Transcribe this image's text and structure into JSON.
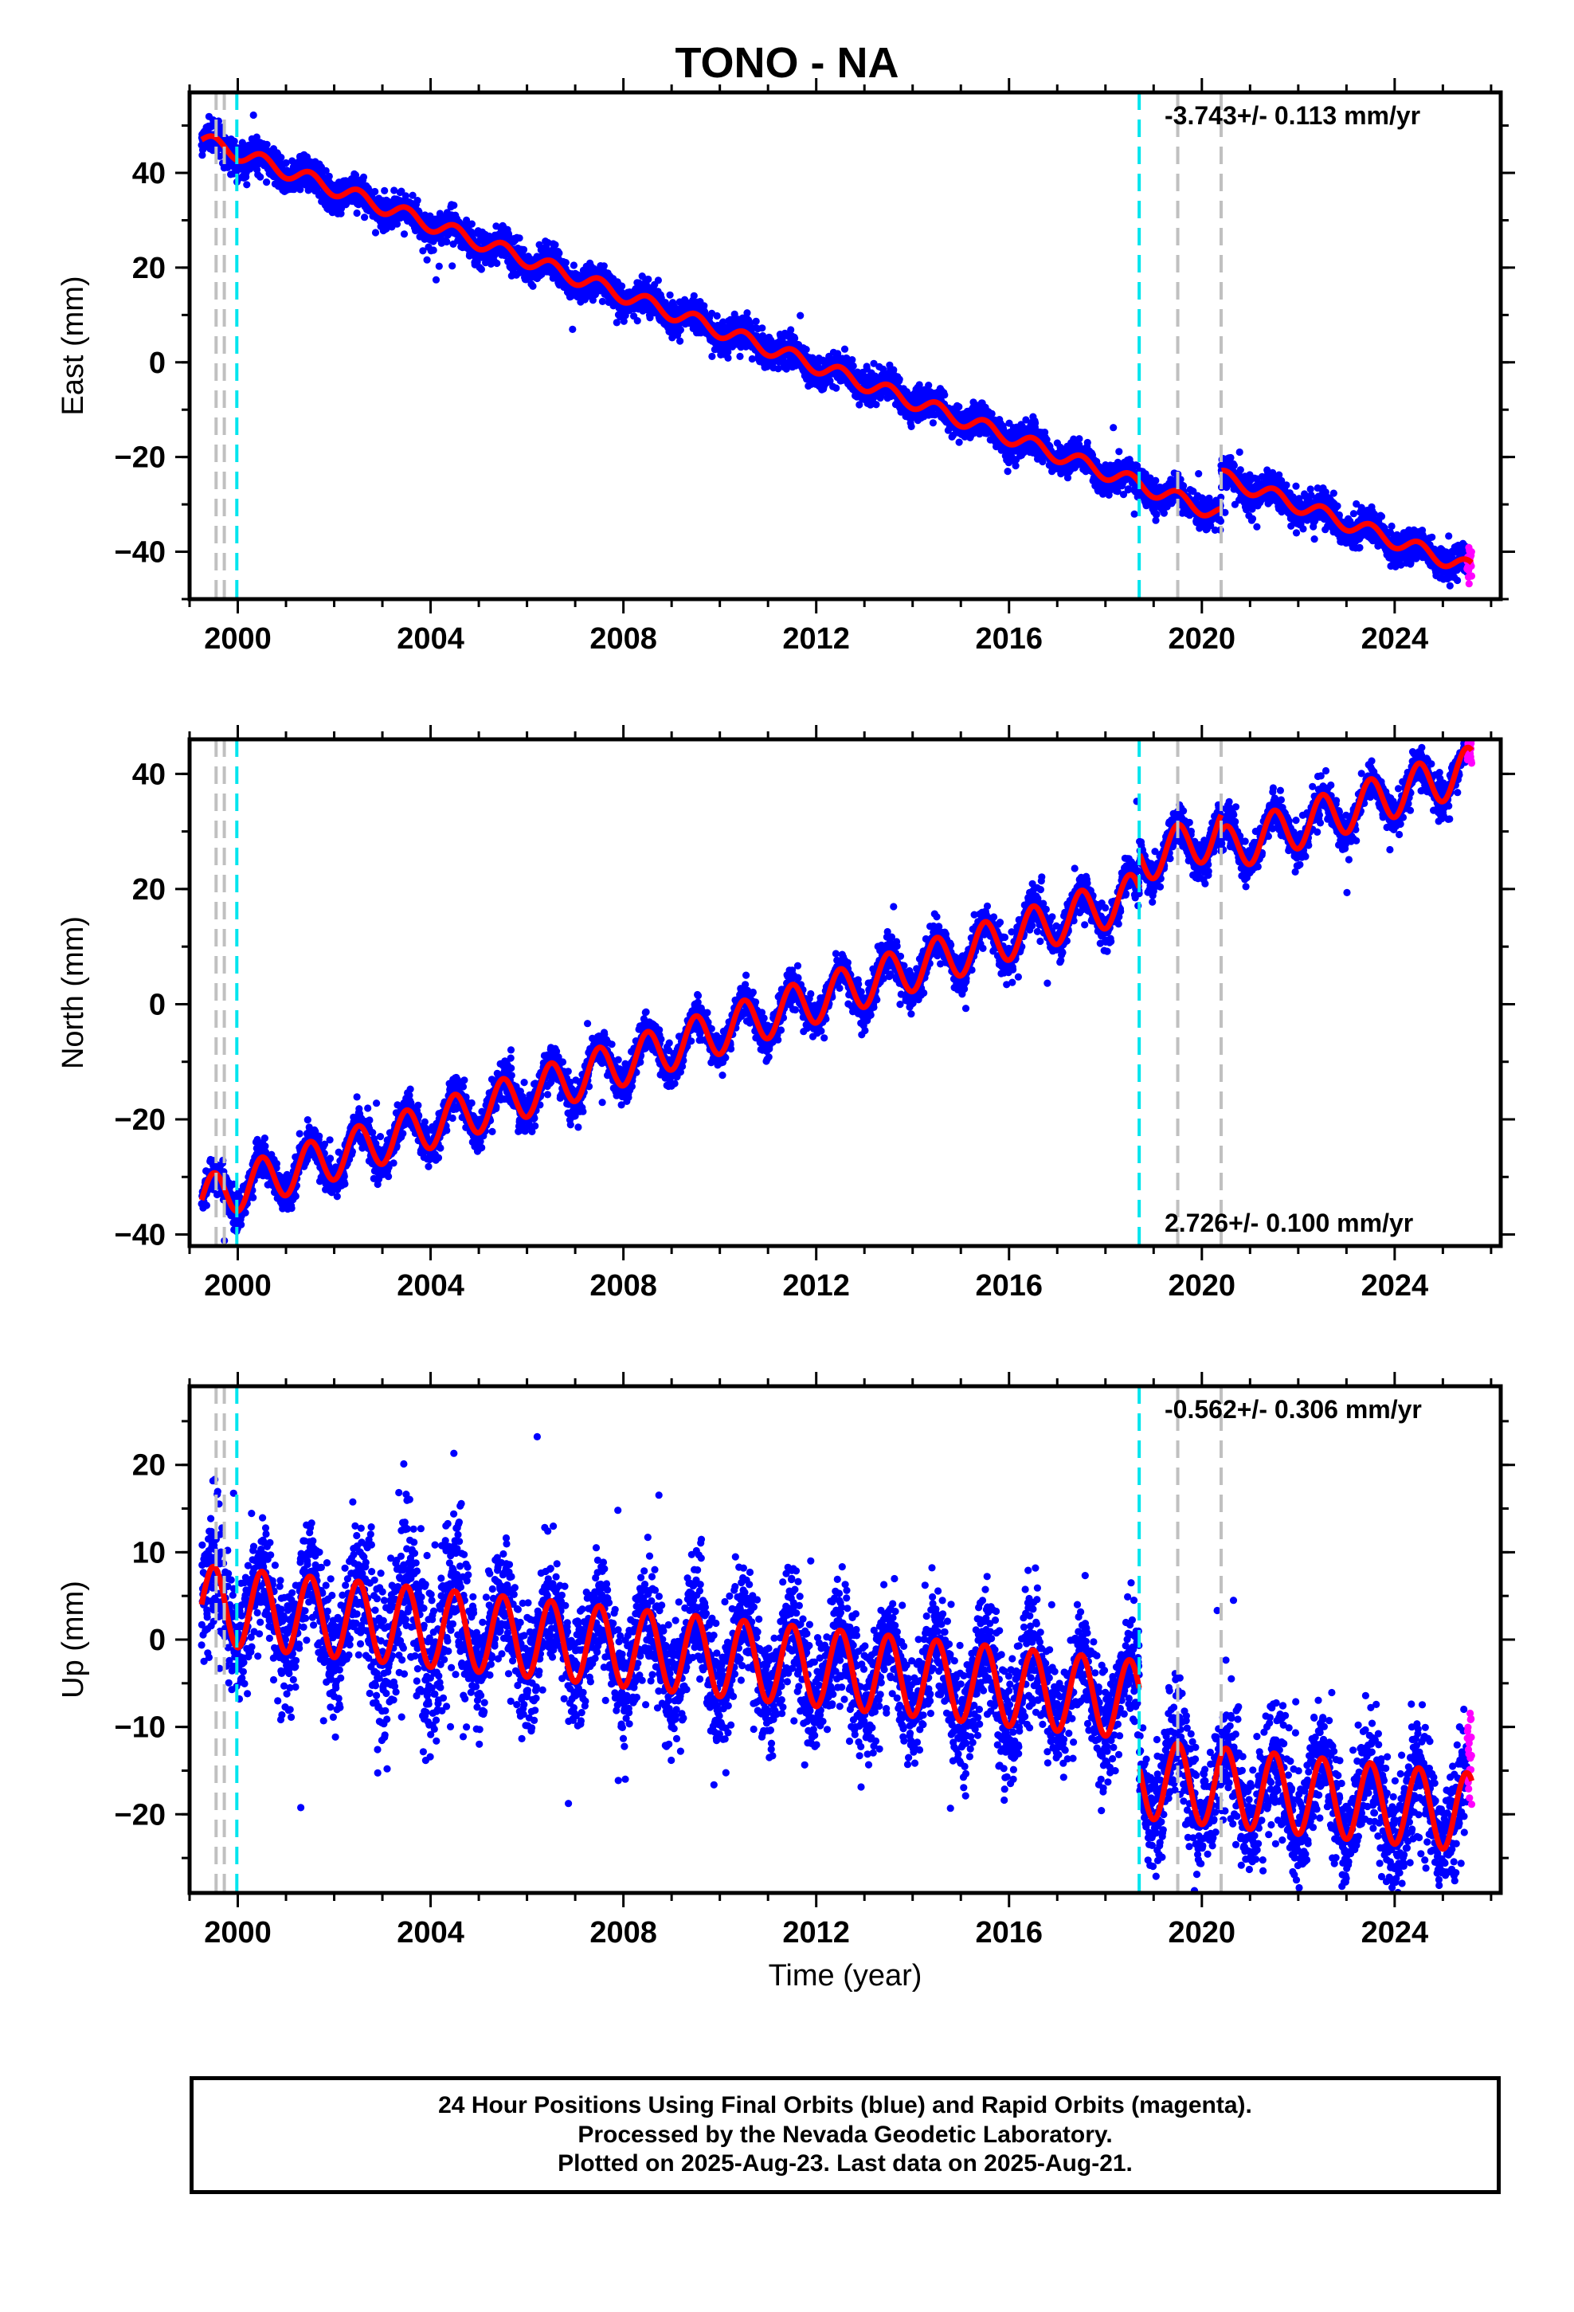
{
  "title": "TONO - NA",
  "xlabel": "Time (year)",
  "footer": {
    "line1": "24 Hour Positions Using Final Orbits (blue) and Rapid Orbits (magenta).",
    "line2": "Processed by the Nevada Geodetic Laboratory.",
    "line3": "Plotted on 2025-Aug-23. Last data on 2025-Aug-21."
  },
  "colors": {
    "final_orbits": "#0000ff",
    "rapid_orbits": "#ff00ff",
    "model_fit": "#ff0000",
    "antenna_change": "#00e5ee",
    "equipment_change": "#c0c0c0"
  },
  "chart_data": [
    {
      "type": "scatter",
      "ylabel": "East (mm)",
      "rate_label": "-3.743+/- 0.113 mm/yr",
      "rate_position": "top-right",
      "xlim": [
        1999.0,
        2026.2
      ],
      "ylim": [
        -50,
        57
      ],
      "xticks": [
        "2000",
        "2004",
        "2008",
        "2012",
        "2016",
        "2020",
        "2024"
      ],
      "yticks": [
        "40",
        "20",
        "0",
        "−20",
        "−40"
      ],
      "model": {
        "start_year": 1999.25,
        "start_value": 47.0,
        "rate": -3.743,
        "annual_amplitude": 1.6,
        "offsets": [
          {
            "year": 2020.4,
            "value": 8.0
          }
        ]
      },
      "scatter_sd": 1.7,
      "data_range": [
        1999.25,
        2025.6
      ],
      "rapid_orbits_from": 2025.5,
      "antenna_changes": [
        1999.98,
        2018.7
      ],
      "equipment_changes": [
        1999.55,
        1999.72,
        2019.5,
        2020.4
      ]
    },
    {
      "type": "scatter",
      "ylabel": "North (mm)",
      "rate_label": "2.726+/- 0.100 mm/yr",
      "rate_position": "bottom-right",
      "xlim": [
        1999.0,
        2026.2
      ],
      "ylim": [
        -42,
        46
      ],
      "xticks": [
        "2000",
        "2004",
        "2008",
        "2012",
        "2016",
        "2020",
        "2024"
      ],
      "yticks": [
        "40",
        "20",
        "0",
        "−20",
        "−40"
      ],
      "model": {
        "start_year": 1999.25,
        "start_value": -34.0,
        "rate": 2.726,
        "annual_amplitude": 4.0,
        "offsets": [
          {
            "year": 2018.7,
            "value": 6.0
          },
          {
            "year": 2020.4,
            "value": -3.0
          }
        ]
      },
      "scatter_sd": 1.6,
      "data_range": [
        1999.25,
        2025.6
      ],
      "rapid_orbits_from": 2025.5,
      "antenna_changes": [
        1999.98,
        2018.7
      ],
      "equipment_changes": [
        1999.55,
        1999.72,
        2019.5,
        2020.4
      ]
    },
    {
      "type": "scatter",
      "ylabel": "Up (mm)",
      "rate_label": "-0.562+/- 0.306 mm/yr",
      "rate_position": "top-right",
      "xlim": [
        1999.0,
        2026.2
      ],
      "ylim": [
        -29,
        29
      ],
      "xticks": [
        "2000",
        "2004",
        "2008",
        "2012",
        "2016",
        "2020",
        "2024"
      ],
      "yticks": [
        "20",
        "10",
        "0",
        "−10",
        "−20"
      ],
      "model": {
        "start_year": 1999.25,
        "start_value": 4.0,
        "rate": -0.562,
        "annual_amplitude": 4.5,
        "offsets": [
          {
            "year": 2018.7,
            "value": -9.0
          }
        ]
      },
      "scatter_sd": 3.4,
      "data_range": [
        1999.25,
        2025.6
      ],
      "rapid_orbits_from": 2025.5,
      "antenna_changes": [
        1999.98,
        2018.7
      ],
      "equipment_changes": [
        1999.55,
        1999.72,
        2019.5,
        2020.4
      ]
    }
  ]
}
